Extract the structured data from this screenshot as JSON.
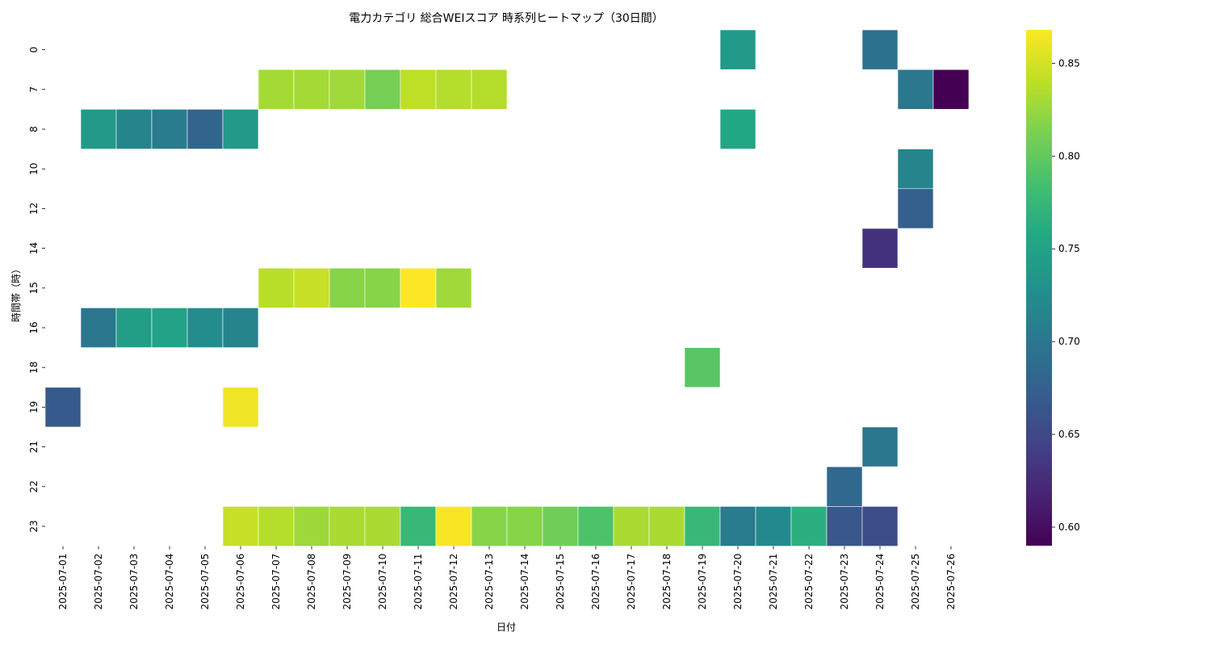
{
  "chart_data": {
    "type": "heatmap",
    "title": "電力カテゴリ 総合WEIスコア 時系列ヒートマップ（30日間）",
    "xlabel": "日付",
    "ylabel": "時間帯（時）",
    "colormap": "viridis",
    "colorbar": {
      "range": [
        0.59,
        0.868
      ],
      "ticks": [
        "0.60",
        "0.65",
        "0.70",
        "0.75",
        "0.80",
        "0.85"
      ]
    },
    "x": [
      "2025-07-01",
      "2025-07-02",
      "2025-07-03",
      "2025-07-04",
      "2025-07-05",
      "2025-07-06",
      "2025-07-07",
      "2025-07-08",
      "2025-07-09",
      "2025-07-10",
      "2025-07-11",
      "2025-07-12",
      "2025-07-13",
      "2025-07-14",
      "2025-07-15",
      "2025-07-16",
      "2025-07-17",
      "2025-07-18",
      "2025-07-19",
      "2025-07-20",
      "2025-07-21",
      "2025-07-22",
      "2025-07-23",
      "2025-07-24",
      "2025-07-25",
      "2025-07-26"
    ],
    "y": [
      "0",
      "7",
      "8",
      "10",
      "12",
      "14",
      "15",
      "16",
      "18",
      "19",
      "21",
      "22",
      "23"
    ],
    "cells": [
      {
        "x": "2025-07-20",
        "y": "0",
        "value": 0.74
      },
      {
        "x": "2025-07-24",
        "y": "0",
        "value": 0.695
      },
      {
        "x": "2025-07-07",
        "y": "7",
        "value": 0.83
      },
      {
        "x": "2025-07-08",
        "y": "7",
        "value": 0.83
      },
      {
        "x": "2025-07-09",
        "y": "7",
        "value": 0.828
      },
      {
        "x": "2025-07-10",
        "y": "7",
        "value": 0.81
      },
      {
        "x": "2025-07-11",
        "y": "7",
        "value": 0.84
      },
      {
        "x": "2025-07-12",
        "y": "7",
        "value": 0.837
      },
      {
        "x": "2025-07-13",
        "y": "7",
        "value": 0.837
      },
      {
        "x": "2025-07-25",
        "y": "7",
        "value": 0.7
      },
      {
        "x": "2025-07-26",
        "y": "7",
        "value": 0.59
      },
      {
        "x": "2025-07-02",
        "y": "8",
        "value": 0.74
      },
      {
        "x": "2025-07-03",
        "y": "8",
        "value": 0.715
      },
      {
        "x": "2025-07-04",
        "y": "8",
        "value": 0.705
      },
      {
        "x": "2025-07-05",
        "y": "8",
        "value": 0.68
      },
      {
        "x": "2025-07-06",
        "y": "8",
        "value": 0.74
      },
      {
        "x": "2025-07-20",
        "y": "8",
        "value": 0.755
      },
      {
        "x": "2025-07-25",
        "y": "10",
        "value": 0.715
      },
      {
        "x": "2025-07-25",
        "y": "12",
        "value": 0.675
      },
      {
        "x": "2025-07-24",
        "y": "14",
        "value": 0.63
      },
      {
        "x": "2025-07-07",
        "y": "15",
        "value": 0.838
      },
      {
        "x": "2025-07-08",
        "y": "15",
        "value": 0.845
      },
      {
        "x": "2025-07-09",
        "y": "15",
        "value": 0.818
      },
      {
        "x": "2025-07-10",
        "y": "15",
        "value": 0.818
      },
      {
        "x": "2025-07-11",
        "y": "15",
        "value": 0.868
      },
      {
        "x": "2025-07-12",
        "y": "15",
        "value": 0.828
      },
      {
        "x": "2025-07-02",
        "y": "16",
        "value": 0.7
      },
      {
        "x": "2025-07-03",
        "y": "16",
        "value": 0.745
      },
      {
        "x": "2025-07-04",
        "y": "16",
        "value": 0.75
      },
      {
        "x": "2025-07-05",
        "y": "16",
        "value": 0.725
      },
      {
        "x": "2025-07-06",
        "y": "16",
        "value": 0.715
      },
      {
        "x": "2025-07-19",
        "y": "18",
        "value": 0.795
      },
      {
        "x": "2025-07-01",
        "y": "19",
        "value": 0.668
      },
      {
        "x": "2025-07-06",
        "y": "19",
        "value": 0.862
      },
      {
        "x": "2025-07-24",
        "y": "21",
        "value": 0.7
      },
      {
        "x": "2025-07-23",
        "y": "22",
        "value": 0.683
      },
      {
        "x": "2025-07-06",
        "y": "23",
        "value": 0.845
      },
      {
        "x": "2025-07-07",
        "y": "23",
        "value": 0.837
      },
      {
        "x": "2025-07-08",
        "y": "23",
        "value": 0.827
      },
      {
        "x": "2025-07-09",
        "y": "23",
        "value": 0.832
      },
      {
        "x": "2025-07-10",
        "y": "23",
        "value": 0.832
      },
      {
        "x": "2025-07-11",
        "y": "23",
        "value": 0.775
      },
      {
        "x": "2025-07-12",
        "y": "23",
        "value": 0.866
      },
      {
        "x": "2025-07-13",
        "y": "23",
        "value": 0.818
      },
      {
        "x": "2025-07-14",
        "y": "23",
        "value": 0.818
      },
      {
        "x": "2025-07-15",
        "y": "23",
        "value": 0.807
      },
      {
        "x": "2025-07-16",
        "y": "23",
        "value": 0.79
      },
      {
        "x": "2025-07-17",
        "y": "23",
        "value": 0.832
      },
      {
        "x": "2025-07-18",
        "y": "23",
        "value": 0.832
      },
      {
        "x": "2025-07-19",
        "y": "23",
        "value": 0.775
      },
      {
        "x": "2025-07-20",
        "y": "23",
        "value": 0.705
      },
      {
        "x": "2025-07-21",
        "y": "23",
        "value": 0.72
      },
      {
        "x": "2025-07-22",
        "y": "23",
        "value": 0.765
      },
      {
        "x": "2025-07-23",
        "y": "23",
        "value": 0.665
      },
      {
        "x": "2025-07-24",
        "y": "23",
        "value": 0.655
      }
    ]
  }
}
